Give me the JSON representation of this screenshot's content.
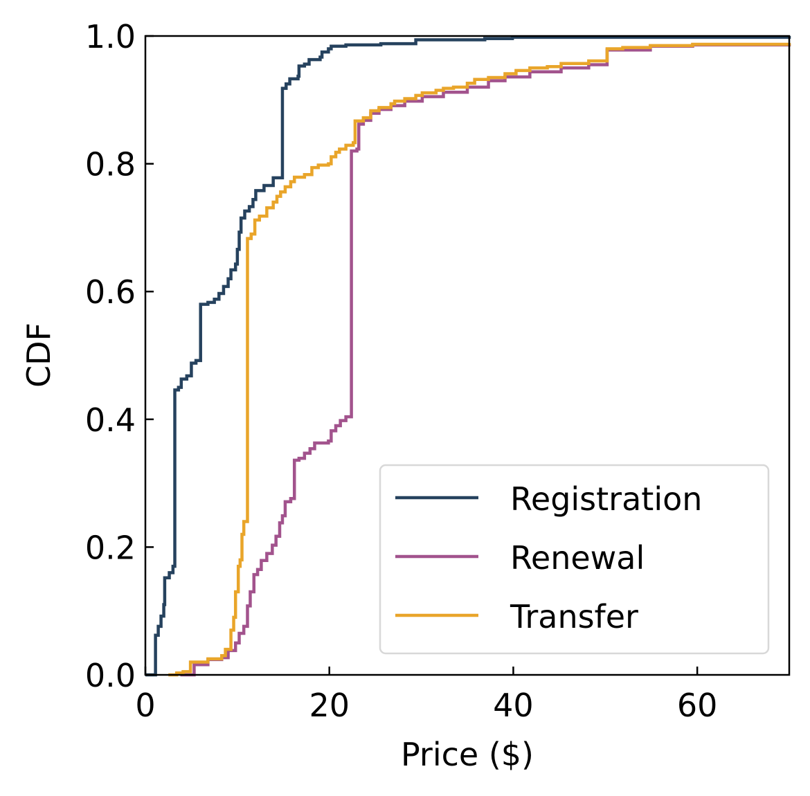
{
  "chart_data": {
    "type": "line",
    "step": true,
    "title": "",
    "xlabel": "Price ($)",
    "ylabel": "CDF",
    "xlim": [
      0,
      70
    ],
    "ylim": [
      0,
      1.0
    ],
    "xticks": [
      "0",
      "20",
      "40",
      "60"
    ],
    "xtick_values": [
      0,
      20,
      40,
      60
    ],
    "yticks": [
      "0.0",
      "0.2",
      "0.4",
      "0.6",
      "0.8",
      "1.0"
    ],
    "ytick_values": [
      0,
      0.2,
      0.4,
      0.6,
      0.8,
      1.0
    ],
    "grid": false,
    "legend_position": "lower-right",
    "series": [
      {
        "name": "Registration",
        "color": "#26425e",
        "x": [
          0,
          1.1,
          1.4,
          1.7,
          2.0,
          2.1,
          2.6,
          3.0,
          3.2,
          3.6,
          3.9,
          4.5,
          5.0,
          5.5,
          6.0,
          6.8,
          7.5,
          8.0,
          8.5,
          9.0,
          9.3,
          9.8,
          10.0,
          10.2,
          10.4,
          10.8,
          11.3,
          11.7,
          12.0,
          12.9,
          13.9,
          14.9,
          15.3,
          15.7,
          16.6,
          16.7,
          17.3,
          17.8,
          19.0,
          19.2,
          19.9,
          20.2,
          21.8,
          25.6,
          29.4,
          36.9,
          39.9,
          70
        ],
        "y": [
          0,
          0.062,
          0.076,
          0.092,
          0.11,
          0.152,
          0.16,
          0.17,
          0.446,
          0.45,
          0.463,
          0.468,
          0.488,
          0.492,
          0.58,
          0.583,
          0.588,
          0.597,
          0.608,
          0.62,
          0.634,
          0.643,
          0.666,
          0.693,
          0.715,
          0.726,
          0.733,
          0.744,
          0.758,
          0.766,
          0.778,
          0.918,
          0.925,
          0.933,
          0.937,
          0.953,
          0.956,
          0.963,
          0.967,
          0.975,
          0.98,
          0.984,
          0.986,
          0.988,
          0.994,
          0.996,
          0.998,
          1.0
        ]
      },
      {
        "name": "Renewal",
        "color": "#a2538d",
        "x": [
          3.8,
          5.3,
          6.8,
          8.3,
          9.0,
          9.8,
          10.2,
          10.7,
          11.1,
          11.4,
          11.8,
          12.2,
          12.6,
          13.2,
          13.8,
          14.2,
          14.6,
          14.9,
          15.2,
          15.8,
          16.2,
          16.7,
          17.3,
          17.9,
          18.4,
          19.9,
          20.2,
          20.7,
          21.2,
          21.8,
          22.4,
          23.0,
          23.2,
          23.7,
          24.5,
          25.4,
          26.7,
          28.2,
          30.1,
          32.4,
          35.0,
          37.3,
          39.1,
          41.8,
          45.2,
          48.2,
          50.2,
          54.9,
          59.5,
          70
        ],
        "y": [
          0,
          0.016,
          0.024,
          0.027,
          0.038,
          0.05,
          0.065,
          0.076,
          0.108,
          0.13,
          0.157,
          0.165,
          0.179,
          0.19,
          0.203,
          0.217,
          0.238,
          0.249,
          0.271,
          0.276,
          0.336,
          0.339,
          0.347,
          0.354,
          0.363,
          0.366,
          0.382,
          0.39,
          0.398,
          0.404,
          0.82,
          0.823,
          0.862,
          0.868,
          0.879,
          0.885,
          0.891,
          0.898,
          0.905,
          0.912,
          0.92,
          0.93,
          0.936,
          0.944,
          0.95,
          0.955,
          0.978,
          0.984,
          0.986,
          0.988
        ]
      },
      {
        "name": "Transfer",
        "color": "#e9a52a",
        "x": [
          2.5,
          3.4,
          4.1,
          4.9,
          6.8,
          8.3,
          8.7,
          9.3,
          9.6,
          9.8,
          10.1,
          10.3,
          10.5,
          10.7,
          11.1,
          11.5,
          11.9,
          12.4,
          13.2,
          13.9,
          14.3,
          14.7,
          15.2,
          15.8,
          16.2,
          17.3,
          18.1,
          18.8,
          19.9,
          20.2,
          20.7,
          21.1,
          21.8,
          22.6,
          22.8,
          23.7,
          24.5,
          25.4,
          26.7,
          27.1,
          28.2,
          29.4,
          30.1,
          31.6,
          32.4,
          33.5,
          35.0,
          35.8,
          37.3,
          39.1,
          40.3,
          41.8,
          43.7,
          45.2,
          48.2,
          50.2,
          51.9,
          54.9,
          59.5,
          70
        ],
        "y": [
          0,
          0.003,
          0.005,
          0.02,
          0.025,
          0.03,
          0.04,
          0.07,
          0.09,
          0.13,
          0.17,
          0.18,
          0.22,
          0.24,
          0.683,
          0.69,
          0.712,
          0.718,
          0.731,
          0.74,
          0.749,
          0.756,
          0.764,
          0.772,
          0.779,
          0.783,
          0.794,
          0.798,
          0.8,
          0.811,
          0.818,
          0.823,
          0.829,
          0.833,
          0.867,
          0.872,
          0.883,
          0.888,
          0.894,
          0.898,
          0.902,
          0.907,
          0.911,
          0.915,
          0.918,
          0.92,
          0.926,
          0.932,
          0.935,
          0.941,
          0.946,
          0.95,
          0.952,
          0.957,
          0.961,
          0.98,
          0.982,
          0.985,
          0.987,
          0.989
        ]
      }
    ]
  }
}
